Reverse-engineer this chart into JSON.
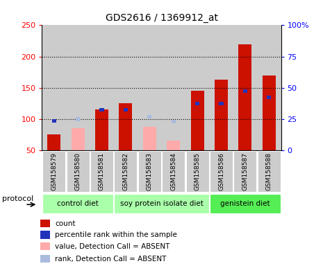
{
  "title": "GDS2616 / 1369912_at",
  "samples": [
    "GSM158579",
    "GSM158580",
    "GSM158581",
    "GSM158582",
    "GSM158583",
    "GSM158584",
    "GSM158585",
    "GSM158586",
    "GSM158587",
    "GSM158588"
  ],
  "count_present": [
    75,
    null,
    115,
    125,
    null,
    null,
    145,
    163,
    220,
    170
  ],
  "count_absent": [
    null,
    85,
    null,
    null,
    88,
    65,
    null,
    null,
    null,
    null
  ],
  "rank_present": [
    97,
    null,
    115,
    115,
    null,
    null,
    125,
    125,
    145,
    135
  ],
  "rank_absent": [
    null,
    100,
    null,
    null,
    104,
    96,
    null,
    null,
    null,
    null
  ],
  "left_ylim": [
    50,
    250
  ],
  "left_yticks": [
    50,
    100,
    150,
    200,
    250
  ],
  "right_ylim": [
    0,
    100
  ],
  "right_yticks": [
    0,
    25,
    50,
    75,
    100
  ],
  "right_yticklabels": [
    "0",
    "25",
    "50",
    "75",
    "100%"
  ],
  "bar_color_present": "#cc1100",
  "bar_color_absent": "#ffaaaa",
  "rank_color_present": "#2233bb",
  "rank_color_absent": "#aabbdd",
  "bg_color": "#cccccc",
  "group_bg_light": "#bbffbb",
  "group_bg_bright": "#44ee44",
  "spans": [
    {
      "start": 0,
      "end": 2,
      "label": "control diet",
      "color": "#aaffaa"
    },
    {
      "start": 3,
      "end": 6,
      "label": "soy protein isolate diet",
      "color": "#aaffaa"
    },
    {
      "start": 7,
      "end": 9,
      "label": "genistein diet",
      "color": "#55ee55"
    }
  ],
  "legend_items": [
    {
      "color": "#cc1100",
      "label": "count"
    },
    {
      "color": "#2233bb",
      "label": "percentile rank within the sample"
    },
    {
      "color": "#ffaaaa",
      "label": "value, Detection Call = ABSENT"
    },
    {
      "color": "#aabbdd",
      "label": "rank, Detection Call = ABSENT"
    }
  ]
}
